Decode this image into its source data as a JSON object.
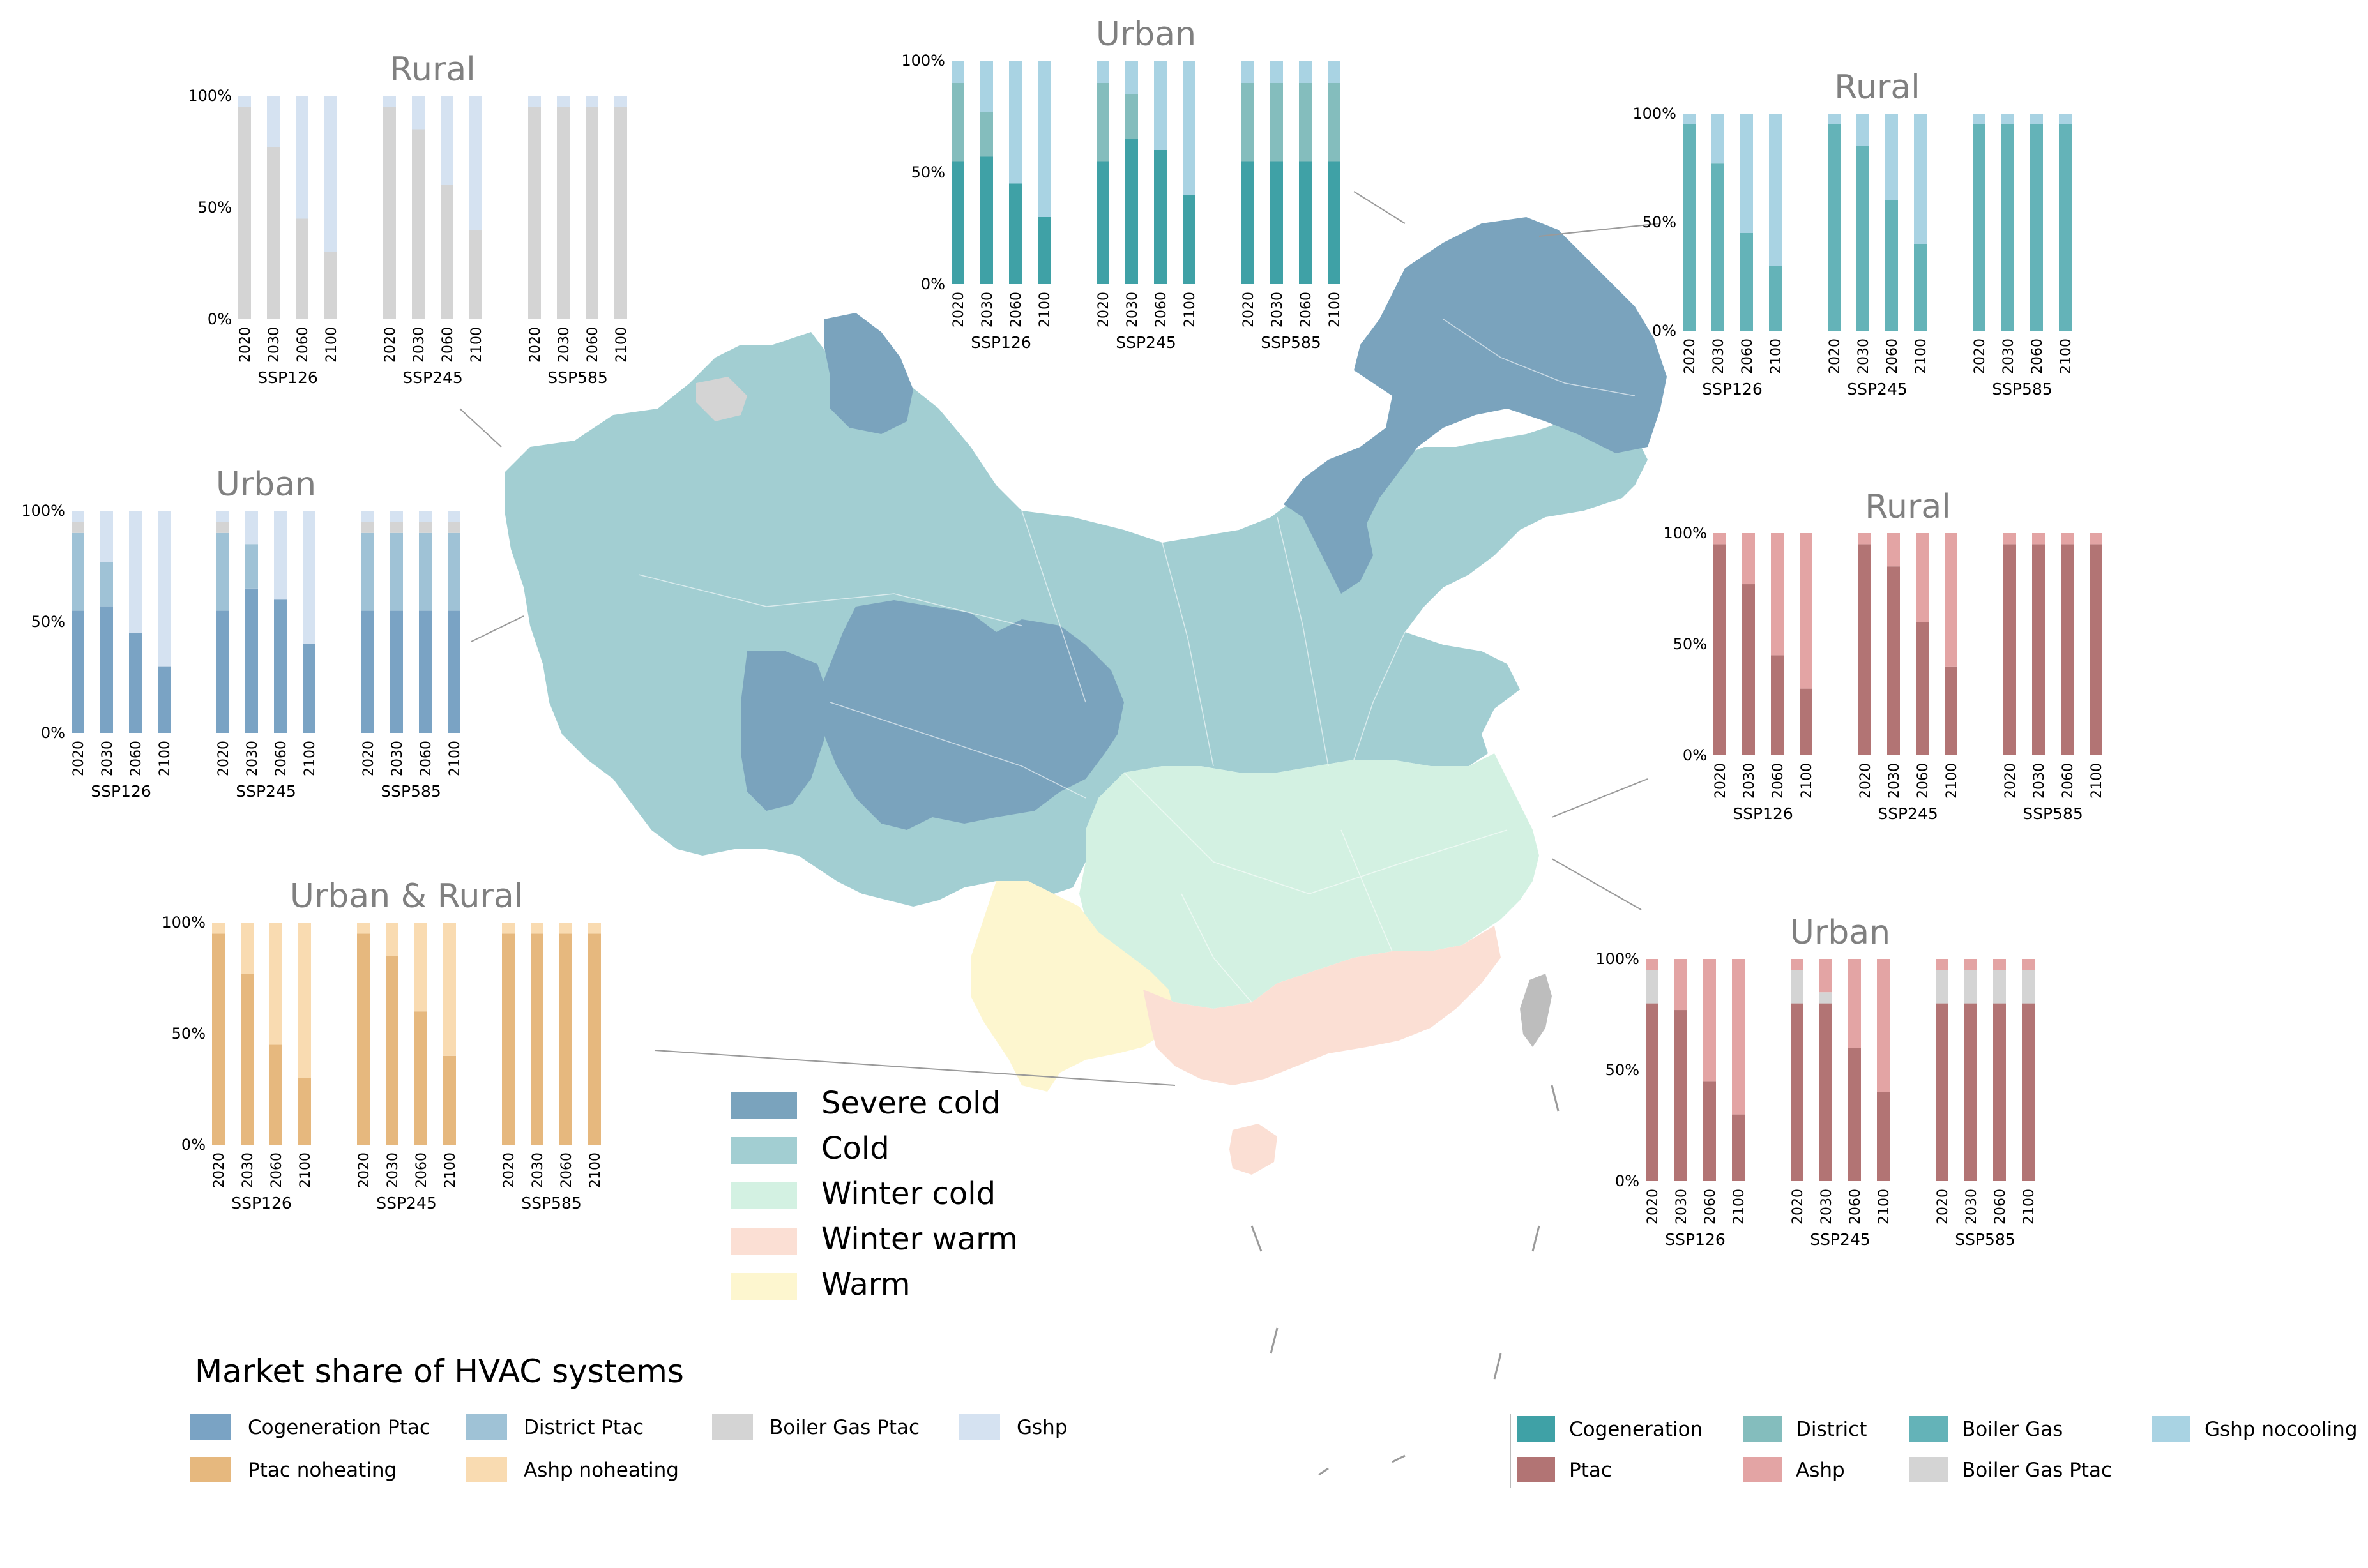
{
  "colors": {
    "severe_cold": "#7aa3bd",
    "cold": "#a2ced2",
    "winter_cold": "#d3f1e2",
    "winter_warm": "#fbdfd4",
    "warm": "#fdf6cf",
    "taiwan": "#bdbdbd",
    "province_line": "#ffffff",
    "leader_line": "#9a9a9a"
  },
  "climate_legend": [
    {
      "label": "Severe cold",
      "color": "#7aa3bd"
    },
    {
      "label": "Cold",
      "color": "#a2ced2"
    },
    {
      "label": "Winter cold",
      "color": "#d3f1e2"
    },
    {
      "label": "Winter warm",
      "color": "#fbdfd4"
    },
    {
      "label": "Warm",
      "color": "#fdf6cf"
    }
  ],
  "hvac_legend": {
    "title": "Market share of HVAC systems",
    "left_items": [
      {
        "label": "Cogeneration Ptac",
        "color": "#7aa3c4"
      },
      {
        "label": "District Ptac",
        "color": "#9fc2d6"
      },
      {
        "label": "Boiler Gas Ptac",
        "color": "#d4d4d4"
      },
      {
        "label": "Gshp",
        "color": "#d5e2f1"
      },
      {
        "label": "Ptac noheating",
        "color": "#e6b87e"
      },
      {
        "label": "Ashp noheating",
        "color": "#f9dbb1"
      }
    ],
    "right_items": [
      {
        "label": "Cogeneration",
        "color": "#3fa1a6"
      },
      {
        "label": "District",
        "color": "#84bdbd"
      },
      {
        "label": "Boiler Gas",
        "color": "#64b3b8"
      },
      {
        "label": "Gshp nocooling",
        "color": "#a9d3e3"
      },
      {
        "label": "Ptac",
        "color": "#b27474"
      },
      {
        "label": "Ashp",
        "color": "#e3a4a4"
      },
      {
        "label": "Boiler Gas Ptac",
        "color": "#d4d4d4"
      }
    ]
  },
  "chart_data": [
    {
      "type": "bar",
      "stacked": true,
      "title": "Rural",
      "categories": [
        "2020",
        "2030",
        "2060",
        "2100"
      ],
      "groups": [
        "SSP126",
        "SSP245",
        "SSP585"
      ],
      "yticks": [
        "0%",
        "50%",
        "100%"
      ],
      "ylim": [
        0,
        100
      ],
      "series": [
        {
          "name": "Boiler Gas Ptac",
          "color": "#d4d4d4",
          "values": [
            [
              95,
              77,
              45,
              30
            ],
            [
              95,
              85,
              60,
              40
            ],
            [
              95,
              95,
              95,
              95
            ]
          ]
        },
        {
          "name": "Gshp",
          "color": "#d5e2f1",
          "values": [
            [
              5,
              23,
              55,
              70
            ],
            [
              5,
              15,
              40,
              60
            ],
            [
              5,
              5,
              5,
              5
            ]
          ]
        }
      ]
    },
    {
      "type": "bar",
      "stacked": true,
      "title": "Urban",
      "categories": [
        "2020",
        "2030",
        "2060",
        "2100"
      ],
      "groups": [
        "SSP126",
        "SSP245",
        "SSP585"
      ],
      "yticks": [
        "0%",
        "50%",
        "100%"
      ],
      "ylim": [
        0,
        100
      ],
      "series": [
        {
          "name": "Cogeneration",
          "color": "#3fa1a6",
          "values": [
            [
              55,
              57,
              45,
              30
            ],
            [
              55,
              65,
              60,
              40
            ],
            [
              55,
              55,
              55,
              55
            ]
          ]
        },
        {
          "name": "District",
          "color": "#84bdbd",
          "values": [
            [
              35,
              20,
              0,
              0
            ],
            [
              35,
              20,
              0,
              0
            ],
            [
              35,
              35,
              35,
              35
            ]
          ]
        },
        {
          "name": "Gshp nocooling",
          "color": "#a9d3e3",
          "values": [
            [
              10,
              23,
              55,
              70
            ],
            [
              10,
              15,
              40,
              60
            ],
            [
              10,
              10,
              10,
              10
            ]
          ]
        }
      ]
    },
    {
      "type": "bar",
      "stacked": true,
      "title": "Rural",
      "categories": [
        "2020",
        "2030",
        "2060",
        "2100"
      ],
      "groups": [
        "SSP126",
        "SSP245",
        "SSP585"
      ],
      "yticks": [
        "0%",
        "50%",
        "100%"
      ],
      "ylim": [
        0,
        100
      ],
      "series": [
        {
          "name": "Boiler Gas",
          "color": "#64b3b8",
          "values": [
            [
              95,
              77,
              45,
              30
            ],
            [
              95,
              85,
              60,
              40
            ],
            [
              95,
              95,
              95,
              95
            ]
          ]
        },
        {
          "name": "Gshp nocooling",
          "color": "#a9d3e3",
          "values": [
            [
              5,
              23,
              55,
              70
            ],
            [
              5,
              15,
              40,
              60
            ],
            [
              5,
              5,
              5,
              5
            ]
          ]
        }
      ]
    },
    {
      "type": "bar",
      "stacked": true,
      "title": "Urban",
      "categories": [
        "2020",
        "2030",
        "2060",
        "2100"
      ],
      "groups": [
        "SSP126",
        "SSP245",
        "SSP585"
      ],
      "yticks": [
        "0%",
        "50%",
        "100%"
      ],
      "ylim": [
        0,
        100
      ],
      "series": [
        {
          "name": "Cogeneration Ptac",
          "color": "#7aa3c4",
          "values": [
            [
              55,
              57,
              45,
              30
            ],
            [
              55,
              65,
              60,
              40
            ],
            [
              55,
              55,
              55,
              55
            ]
          ]
        },
        {
          "name": "District Ptac",
          "color": "#9fc2d6",
          "values": [
            [
              35,
              20,
              0,
              0
            ],
            [
              35,
              20,
              0,
              0
            ],
            [
              35,
              35,
              35,
              35
            ]
          ]
        },
        {
          "name": "Boiler Gas Ptac",
          "color": "#d4d4d4",
          "values": [
            [
              5,
              0,
              0,
              0
            ],
            [
              5,
              0,
              0,
              0
            ],
            [
              5,
              5,
              5,
              5
            ]
          ]
        },
        {
          "name": "Gshp",
          "color": "#d5e2f1",
          "values": [
            [
              5,
              23,
              55,
              70
            ],
            [
              5,
              15,
              40,
              60
            ],
            [
              5,
              5,
              5,
              5
            ]
          ]
        }
      ]
    },
    {
      "type": "bar",
      "stacked": true,
      "title": "Rural",
      "categories": [
        "2020",
        "2030",
        "2060",
        "2100"
      ],
      "groups": [
        "SSP126",
        "SSP245",
        "SSP585"
      ],
      "yticks": [
        "0%",
        "50%",
        "100%"
      ],
      "ylim": [
        0,
        100
      ],
      "series": [
        {
          "name": "Ptac",
          "color": "#b27474",
          "values": [
            [
              95,
              77,
              45,
              30
            ],
            [
              95,
              85,
              60,
              40
            ],
            [
              95,
              95,
              95,
              95
            ]
          ]
        },
        {
          "name": "Ashp",
          "color": "#e3a4a4",
          "values": [
            [
              5,
              23,
              55,
              70
            ],
            [
              5,
              15,
              40,
              60
            ],
            [
              5,
              5,
              5,
              5
            ]
          ]
        }
      ]
    },
    {
      "type": "bar",
      "stacked": true,
      "title": "Urban & Rural",
      "categories": [
        "2020",
        "2030",
        "2060",
        "2100"
      ],
      "groups": [
        "SSP126",
        "SSP245",
        "SSP585"
      ],
      "yticks": [
        "0%",
        "50%",
        "100%"
      ],
      "ylim": [
        0,
        100
      ],
      "series": [
        {
          "name": "Ptac noheating",
          "color": "#e6b87e",
          "values": [
            [
              95,
              77,
              45,
              30
            ],
            [
              95,
              85,
              60,
              40
            ],
            [
              95,
              95,
              95,
              95
            ]
          ]
        },
        {
          "name": "Ashp noheating",
          "color": "#f9dbb1",
          "values": [
            [
              5,
              23,
              55,
              70
            ],
            [
              5,
              15,
              40,
              60
            ],
            [
              5,
              5,
              5,
              5
            ]
          ]
        }
      ]
    },
    {
      "type": "bar",
      "stacked": true,
      "title": "Urban",
      "categories": [
        "2020",
        "2030",
        "2060",
        "2100"
      ],
      "groups": [
        "SSP126",
        "SSP245",
        "SSP585"
      ],
      "yticks": [
        "0%",
        "50%",
        "100%"
      ],
      "ylim": [
        0,
        100
      ],
      "series": [
        {
          "name": "Ptac",
          "color": "#b27474",
          "values": [
            [
              80,
              77,
              45,
              30
            ],
            [
              80,
              80,
              60,
              40
            ],
            [
              80,
              80,
              80,
              80
            ]
          ]
        },
        {
          "name": "Boiler Gas Ptac",
          "color": "#d4d4d4",
          "values": [
            [
              15,
              0,
              0,
              0
            ],
            [
              15,
              5,
              0,
              0
            ],
            [
              15,
              15,
              15,
              15
            ]
          ]
        },
        {
          "name": "Ashp",
          "color": "#e3a4a4",
          "values": [
            [
              5,
              23,
              55,
              70
            ],
            [
              5,
              15,
              40,
              60
            ],
            [
              5,
              5,
              5,
              5
            ]
          ]
        }
      ]
    }
  ]
}
